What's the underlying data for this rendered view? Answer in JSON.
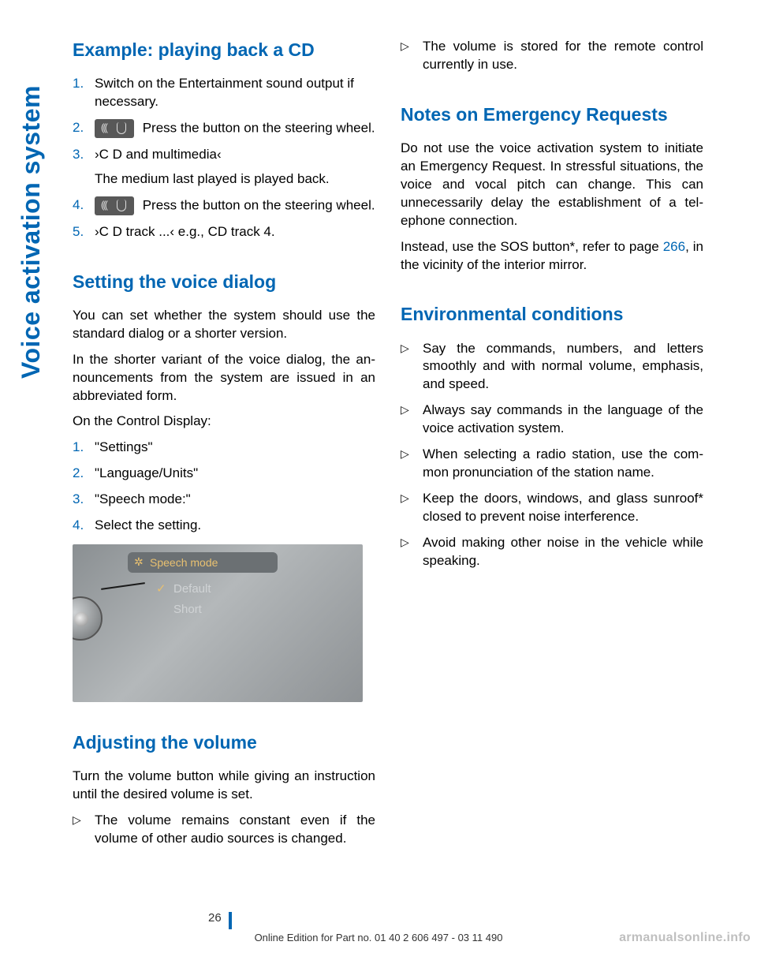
{
  "side_title": "Voice activation system",
  "left": {
    "h1": "Example: playing back a CD",
    "ol1": {
      "i1": "Switch on the Entertainment sound output if necessary.",
      "i2": " Press the button on the steering wheel.",
      "i3a": "›C D and multimedia‹",
      "i3b": "The medium last played is played back.",
      "i4": " Press the button on the steering wheel.",
      "i5": "›C D track ...‹ e.g., CD track 4."
    },
    "h2": "Setting the voice dialog",
    "p1": "You can set whether the system should use the standard dialog or a shorter version.",
    "p2": "In the shorter variant of the voice dialog, the an­nouncements from the system are issued in an abbreviated form.",
    "p3": "On the Control Display:",
    "ol2": {
      "i1": "\"Settings\"",
      "i2": "\"Language/Units\"",
      "i3": "\"Speech mode:\"",
      "i4": "Select the setting."
    },
    "screenshot": {
      "title": "Speech mode",
      "opt1": "Default",
      "opt2": "Short"
    },
    "h3": "Adjusting the volume",
    "p4": "Turn the volume button while giving an instruc­tion until the desired volume is set.",
    "ul1": {
      "i1": "The volume remains constant even if the volume of other audio sources is changed."
    }
  },
  "right": {
    "ul0": {
      "i1": "The volume is stored for the remote control currently in use."
    },
    "h1": "Notes on Emergency Requests",
    "p1": "Do not use the voice activation system to initiate an Emergency Request. In stressful situations, the voice and vocal pitch can change. This can unnecessarily delay the establishment of a tel­ephone connection.",
    "p2a": "Instead, use the SOS button*, refer to page ",
    "p2b": "266",
    "p2c": ", in the vicinity of the interior mirror.",
    "h2": "Environmental conditions",
    "ul1": {
      "i1": "Say the commands, numbers, and letters smoothly and with normal volume, empha­sis, and speed.",
      "i2": "Always say commands in the language of the voice activation system.",
      "i3": "When selecting a radio station, use the com­mon pronunciation of the station name.",
      "i4": "Keep the doors, windows, and glass sun­roof* closed to prevent noise interference.",
      "i5": "Avoid making other noise in the vehicle while speaking."
    }
  },
  "footer": {
    "page": "26",
    "line": "Online Edition for Part no. 01 40 2 606 497 - 03 11 490",
    "watermark": "armanualsonline.info"
  }
}
